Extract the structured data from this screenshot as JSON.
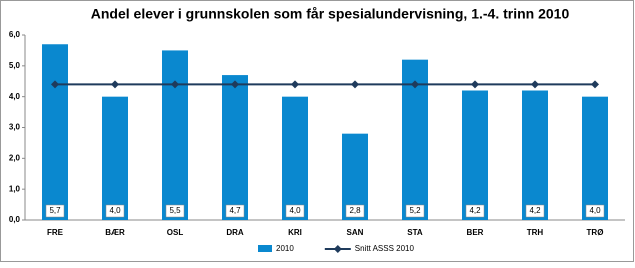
{
  "chart_data": {
    "type": "bar",
    "title": "Andel elever i grunnskolen som får spesialundervisning, 1.-4. trinn 2010",
    "categories": [
      "FRE",
      "BÆR",
      "OSL",
      "DRA",
      "KRI",
      "SAN",
      "STA",
      "BER",
      "TRH",
      "TRØ"
    ],
    "series": [
      {
        "name": "2010",
        "type": "bar",
        "color": "#0a88cf",
        "values": [
          5.7,
          4.0,
          5.5,
          4.7,
          4.0,
          2.8,
          5.2,
          4.2,
          4.2,
          4.0
        ],
        "value_labels": [
          "5,7",
          "4,0",
          "5,5",
          "4,7",
          "4,0",
          "2,8",
          "5,2",
          "4,2",
          "4,2",
          "4,0"
        ]
      },
      {
        "name": "Snitt ASSS 2010",
        "type": "line",
        "color": "#1f3b5c",
        "values": [
          4.4,
          4.4,
          4.4,
          4.4,
          4.4,
          4.4,
          4.4,
          4.4,
          4.4,
          4.4
        ]
      }
    ],
    "ylim": [
      0,
      6
    ],
    "yticks": [
      {
        "value": 0,
        "label": "0,0"
      },
      {
        "value": 1,
        "label": "1,0"
      },
      {
        "value": 2,
        "label": "2,0"
      },
      {
        "value": 3,
        "label": "3,0"
      },
      {
        "value": 4,
        "label": "4,0"
      },
      {
        "value": 5,
        "label": "5,0"
      },
      {
        "value": 6,
        "label": "6,0"
      }
    ],
    "grid": false
  }
}
